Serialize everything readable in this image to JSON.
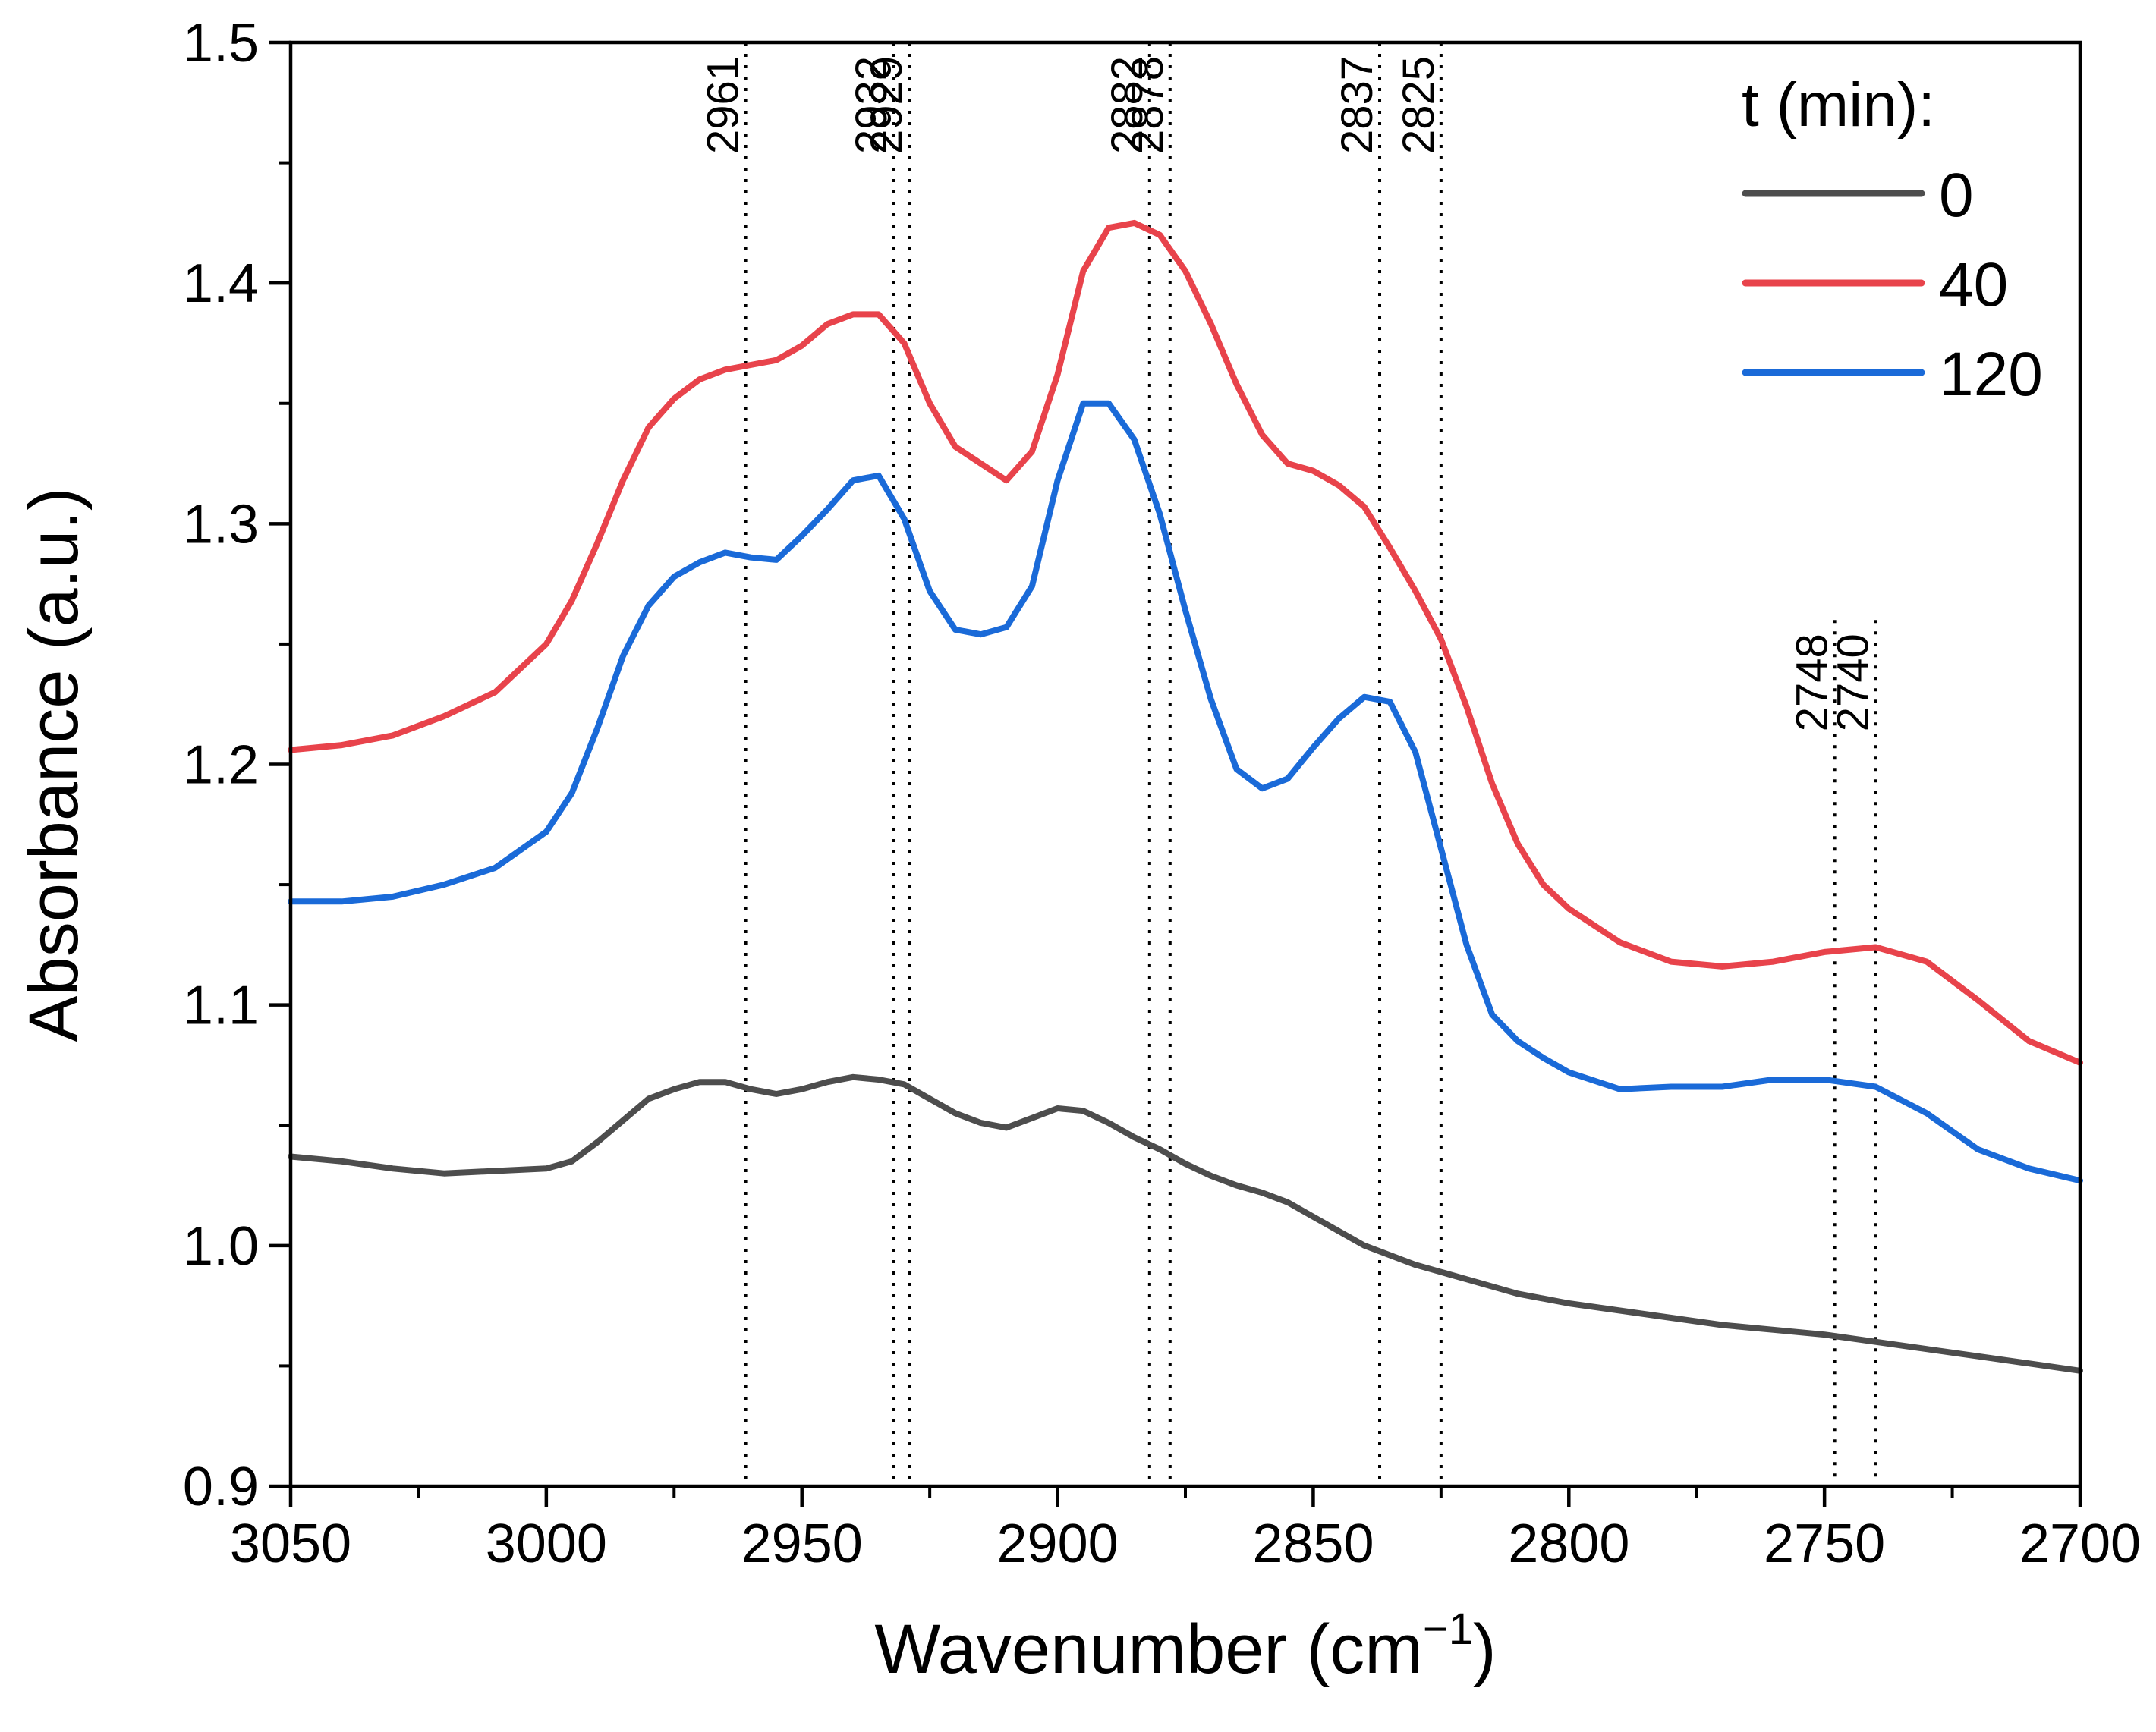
{
  "chart_data": {
    "type": "line",
    "title": "",
    "xlabel": "Wavenumber (cm",
    "xlabel_sup": "−1",
    "xlabel_close": ")",
    "ylabel": "Absorbance (a.u.)",
    "xlim": [
      3050,
      2700
    ],
    "ylim": [
      0.9,
      1.5
    ],
    "x_ticks": [
      3050,
      3000,
      2950,
      2900,
      2850,
      2800,
      2750,
      2700
    ],
    "x_tick_labels": [
      "3050",
      "3000",
      "2950",
      "2900",
      "2850",
      "2800",
      "2750",
      "2700"
    ],
    "y_ticks": [
      0.9,
      1.0,
      1.1,
      1.2,
      1.3,
      1.4,
      1.5
    ],
    "y_tick_labels": [
      "0.9",
      "1.0",
      "1.1",
      "1.2",
      "1.3",
      "1.4",
      "1.5"
    ],
    "legend_title": "t (min):",
    "legend_position": "top-right",
    "series": [
      {
        "name": "0",
        "color": "#4d4d4d",
        "x": [
          3050,
          3040,
          3030,
          3020,
          3010,
          3000,
          2995,
          2990,
          2985,
          2980,
          2975,
          2970,
          2965,
          2960,
          2955,
          2950,
          2945,
          2940,
          2935,
          2930,
          2925,
          2920,
          2915,
          2910,
          2905,
          2900,
          2895,
          2890,
          2885,
          2880,
          2875,
          2870,
          2865,
          2860,
          2855,
          2850,
          2845,
          2840,
          2835,
          2830,
          2825,
          2820,
          2810,
          2800,
          2790,
          2780,
          2770,
          2760,
          2750,
          2740,
          2730,
          2720,
          2710,
          2700
        ],
        "y": [
          1.037,
          1.035,
          1.032,
          1.03,
          1.031,
          1.032,
          1.035,
          1.043,
          1.052,
          1.061,
          1.065,
          1.068,
          1.068,
          1.065,
          1.063,
          1.065,
          1.068,
          1.07,
          1.069,
          1.067,
          1.061,
          1.055,
          1.051,
          1.049,
          1.053,
          1.057,
          1.056,
          1.051,
          1.045,
          1.04,
          1.034,
          1.029,
          1.025,
          1.022,
          1.018,
          1.012,
          1.006,
          1.0,
          0.996,
          0.992,
          0.989,
          0.986,
          0.98,
          0.976,
          0.973,
          0.97,
          0.967,
          0.965,
          0.963,
          0.96,
          0.957,
          0.954,
          0.951,
          0.948
        ]
      },
      {
        "name": "40",
        "color": "#e8434b",
        "x": [
          3050,
          3040,
          3030,
          3020,
          3010,
          3000,
          2995,
          2990,
          2985,
          2980,
          2975,
          2970,
          2965,
          2960,
          2955,
          2950,
          2945,
          2940,
          2935,
          2930,
          2925,
          2920,
          2915,
          2910,
          2905,
          2900,
          2895,
          2890,
          2885,
          2880,
          2875,
          2870,
          2865,
          2860,
          2855,
          2850,
          2845,
          2840,
          2835,
          2830,
          2825,
          2820,
          2815,
          2810,
          2805,
          2800,
          2790,
          2780,
          2770,
          2760,
          2750,
          2740,
          2730,
          2720,
          2710,
          2700
        ],
        "y": [
          1.206,
          1.208,
          1.212,
          1.22,
          1.23,
          1.25,
          1.268,
          1.292,
          1.318,
          1.34,
          1.352,
          1.36,
          1.364,
          1.366,
          1.368,
          1.374,
          1.383,
          1.387,
          1.387,
          1.375,
          1.35,
          1.332,
          1.325,
          1.318,
          1.33,
          1.362,
          1.405,
          1.423,
          1.425,
          1.42,
          1.405,
          1.383,
          1.358,
          1.337,
          1.325,
          1.322,
          1.316,
          1.307,
          1.29,
          1.272,
          1.252,
          1.224,
          1.192,
          1.167,
          1.15,
          1.14,
          1.126,
          1.118,
          1.116,
          1.118,
          1.122,
          1.124,
          1.118,
          1.102,
          1.085,
          1.076
        ]
      },
      {
        "name": "120",
        "color": "#1a6ad8",
        "x": [
          3050,
          3040,
          3030,
          3020,
          3010,
          3000,
          2995,
          2990,
          2985,
          2980,
          2975,
          2970,
          2965,
          2960,
          2955,
          2950,
          2945,
          2940,
          2935,
          2930,
          2925,
          2920,
          2915,
          2910,
          2905,
          2900,
          2895,
          2890,
          2885,
          2880,
          2875,
          2870,
          2865,
          2860,
          2855,
          2850,
          2845,
          2840,
          2835,
          2830,
          2825,
          2820,
          2815,
          2810,
          2805,
          2800,
          2790,
          2780,
          2770,
          2760,
          2750,
          2740,
          2730,
          2720,
          2710,
          2700
        ],
        "y": [
          1.143,
          1.143,
          1.145,
          1.15,
          1.157,
          1.172,
          1.188,
          1.215,
          1.245,
          1.266,
          1.278,
          1.284,
          1.288,
          1.286,
          1.285,
          1.295,
          1.306,
          1.318,
          1.32,
          1.302,
          1.272,
          1.256,
          1.254,
          1.257,
          1.274,
          1.318,
          1.35,
          1.35,
          1.335,
          1.304,
          1.264,
          1.227,
          1.198,
          1.19,
          1.194,
          1.207,
          1.219,
          1.228,
          1.226,
          1.205,
          1.165,
          1.125,
          1.096,
          1.085,
          1.078,
          1.072,
          1.065,
          1.066,
          1.066,
          1.069,
          1.069,
          1.066,
          1.055,
          1.04,
          1.032,
          1.027
        ]
      }
    ],
    "peak_markers": [
      {
        "label": "2961",
        "x": 2961,
        "y_top": 1.5
      },
      {
        "label": "2932",
        "x": 2932,
        "y_top": 1.5
      },
      {
        "label": "2929",
        "x": 2929,
        "y_top": 1.5
      },
      {
        "label": "2882",
        "x": 2882,
        "y_top": 1.5
      },
      {
        "label": "2878",
        "x": 2878,
        "y_top": 1.5
      },
      {
        "label": "2837",
        "x": 2837,
        "y_top": 1.5
      },
      {
        "label": "2825",
        "x": 2825,
        "y_top": 1.5
      },
      {
        "label": "2748",
        "x": 2748,
        "y_top": 1.26
      },
      {
        "label": "2740",
        "x": 2740,
        "y_top": 1.26
      }
    ]
  }
}
